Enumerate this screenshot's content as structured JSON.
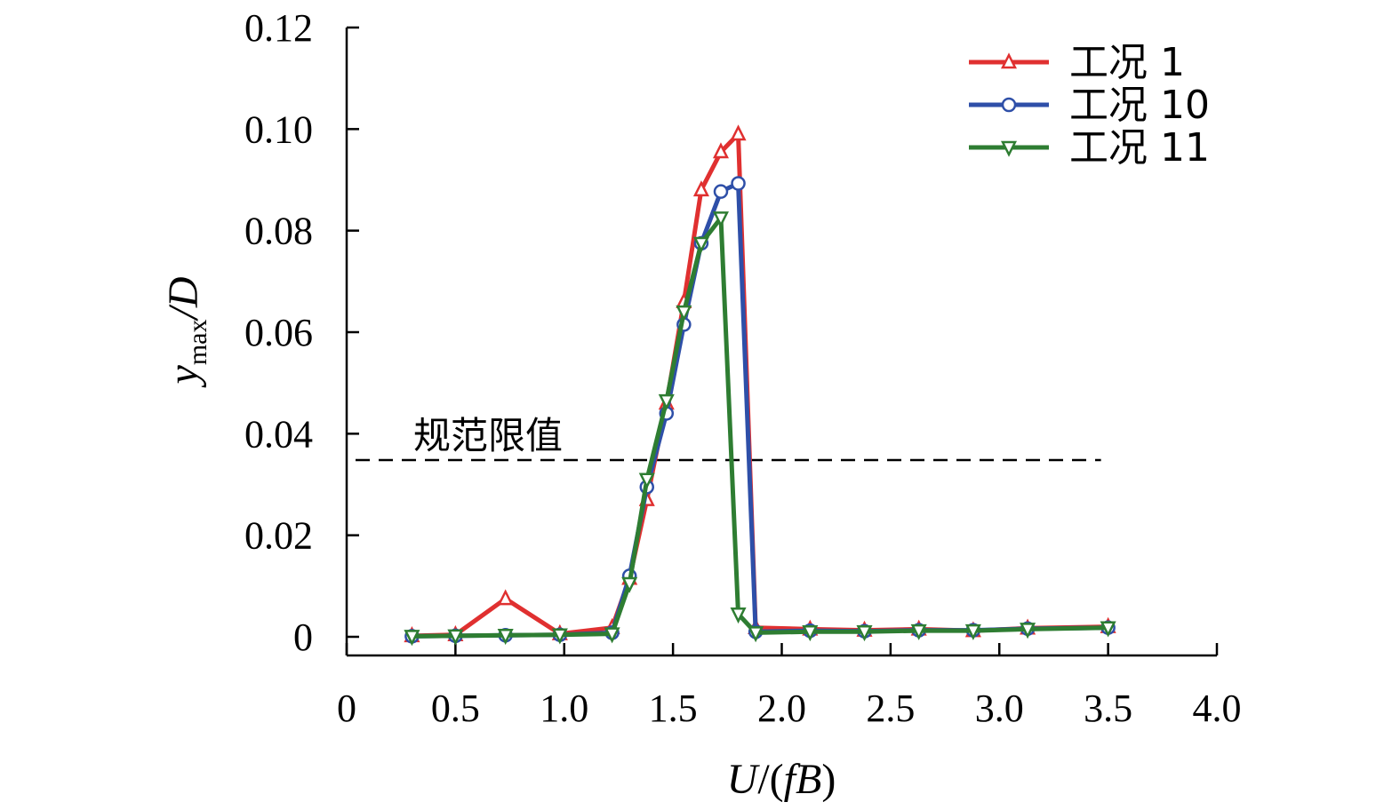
{
  "chart_data": {
    "type": "line",
    "xlabel_main": "U",
    "xlabel_rest": "/(",
    "xlabel_f": "f",
    "xlabel_b": "B",
    "xlabel_close": ")",
    "ylabel_y": "y",
    "ylabel_sub": "max",
    "ylabel_rest": "/D",
    "xlim": [
      0,
      4.0
    ],
    "ylim": [
      0,
      0.12
    ],
    "xticks": [
      0,
      0.5,
      1.0,
      1.5,
      2.0,
      2.5,
      3.0,
      3.5,
      4.0
    ],
    "xtick_labels": [
      "0",
      "0.5",
      "1.0",
      "1.5",
      "2.0",
      "2.5",
      "3.0",
      "3.5",
      "4.0"
    ],
    "yticks": [
      0,
      0.02,
      0.04,
      0.06,
      0.08,
      0.1,
      0.12
    ],
    "ytick_labels": [
      "0",
      "0.02",
      "0.04",
      "0.06",
      "0.08",
      "0.10",
      "0.12"
    ],
    "legend_position": "top-right",
    "reference_line": {
      "label": "规范限值",
      "y": 0.0348,
      "x_range": [
        0,
        3.5
      ],
      "style": "dashed",
      "color": "#000000"
    },
    "series": [
      {
        "name": "工况 1",
        "color": "#e03030",
        "marker": "triangle-up",
        "x": [
          0.3,
          0.5,
          0.73,
          0.98,
          1.22,
          1.3,
          1.38,
          1.47,
          1.55,
          1.63,
          1.72,
          1.8,
          1.88,
          2.13,
          2.38,
          2.63,
          2.88,
          3.13,
          3.5
        ],
        "y": [
          0.0002,
          0.0004,
          0.0075,
          0.0006,
          0.0018,
          0.0115,
          0.027,
          0.046,
          0.066,
          0.088,
          0.0955,
          0.099,
          0.0018,
          0.0015,
          0.0013,
          0.0015,
          0.0012,
          0.0017,
          0.002
        ]
      },
      {
        "name": "工况 10",
        "color": "#2e4fa8",
        "marker": "circle",
        "x": [
          0.3,
          0.5,
          0.73,
          0.98,
          1.22,
          1.3,
          1.38,
          1.47,
          1.55,
          1.63,
          1.72,
          1.8,
          1.88,
          2.13,
          2.38,
          2.63,
          2.88,
          3.13,
          3.5
        ],
        "y": [
          0.0001,
          0.0002,
          0.0003,
          0.0004,
          0.0008,
          0.012,
          0.0295,
          0.044,
          0.0615,
          0.0775,
          0.0877,
          0.0893,
          0.001,
          0.0012,
          0.0011,
          0.0013,
          0.0013,
          0.0016,
          0.0018
        ]
      },
      {
        "name": "工况 11",
        "color": "#2e7d32",
        "marker": "triangle-down",
        "x": [
          0.3,
          0.5,
          0.73,
          0.98,
          1.22,
          1.3,
          1.38,
          1.47,
          1.55,
          1.63,
          1.72,
          1.8,
          1.88,
          2.13,
          2.38,
          2.63,
          2.88,
          3.13,
          3.5
        ],
        "y": [
          0.0001,
          0.0002,
          0.0003,
          0.0004,
          0.0006,
          0.0105,
          0.031,
          0.0465,
          0.064,
          0.0775,
          0.0825,
          0.0045,
          0.0008,
          0.001,
          0.001,
          0.0012,
          0.0012,
          0.0015,
          0.0018
        ]
      }
    ]
  }
}
